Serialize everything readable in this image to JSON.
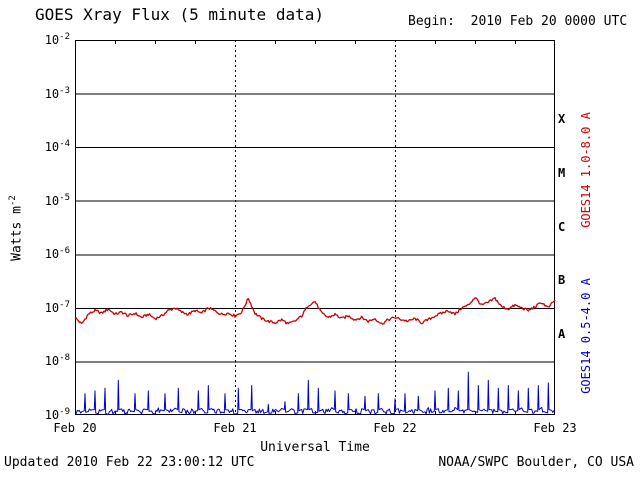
{
  "chart_data": {
    "type": "line",
    "title": "GOES Xray Flux (5 minute data)",
    "begin_label": "Begin:  2010 Feb 20 0000 UTC",
    "xlabel": "Universal Time",
    "ylabel_base": "Watts m",
    "ylabel_exp": "-2",
    "y_tick_base": "10",
    "y_ticks": [
      -2,
      -3,
      -4,
      -5,
      -6,
      -7,
      -8,
      -9
    ],
    "x_ticks": [
      {
        "label": "Feb 20",
        "hour": 0
      },
      {
        "label": "Feb 21",
        "hour": 24
      },
      {
        "label": "Feb 22",
        "hour": 48
      },
      {
        "label": "Feb 23",
        "hour": 72
      }
    ],
    "xlim_hours": [
      0,
      72
    ],
    "ylim_log10": [
      -9,
      -2
    ],
    "grid": true,
    "decade_gridlines": [
      -3,
      -4,
      -5,
      -6,
      -7,
      -8
    ],
    "day_gridlines_hours": [
      24,
      48
    ],
    "flare_classes": [
      {
        "label": "X",
        "log10_center": -3.5
      },
      {
        "label": "M",
        "log10_center": -4.5
      },
      {
        "label": "C",
        "log10_center": -5.5
      },
      {
        "label": "B",
        "log10_center": -6.5
      },
      {
        "label": "A",
        "log10_center": -7.5
      }
    ],
    "series": [
      {
        "name": "GOES14 1.0-8.0 A",
        "color": "#cc0000",
        "time_step_hours": 1,
        "log10_flux": [
          -7.18,
          -7.3,
          -7.12,
          -7.05,
          -7.1,
          -7.02,
          -7.12,
          -7.08,
          -7.15,
          -7.1,
          -7.18,
          -7.12,
          -7.2,
          -7.15,
          -7.05,
          -7.0,
          -7.08,
          -7.12,
          -7.05,
          -7.1,
          -7.0,
          -7.06,
          -7.12,
          -7.1,
          -7.15,
          -7.08,
          -6.82,
          -7.1,
          -7.2,
          -7.25,
          -7.28,
          -7.22,
          -7.3,
          -7.25,
          -7.15,
          -6.95,
          -6.88,
          -7.1,
          -7.18,
          -7.12,
          -7.2,
          -7.15,
          -7.22,
          -7.18,
          -7.25,
          -7.2,
          -7.3,
          -7.22,
          -7.18,
          -7.22,
          -7.25,
          -7.2,
          -7.28,
          -7.22,
          -7.15,
          -7.1,
          -7.05,
          -7.12,
          -7.0,
          -6.95,
          -6.8,
          -6.95,
          -6.9,
          -6.82,
          -6.98,
          -7.02,
          -6.95,
          -7.0,
          -7.05,
          -6.98,
          -6.9,
          -7.0,
          -6.85
        ]
      },
      {
        "name": "GOES14 0.5-4.0 A",
        "color": "#0000cc",
        "time_step_hours": 0.5,
        "log10_flux": [
          -9.0,
          -8.95,
          -8.92,
          -8.6,
          -8.95,
          -8.9,
          -8.55,
          -8.96,
          -8.9,
          -8.5,
          -8.97,
          -8.88,
          -8.93,
          -8.35,
          -8.9,
          -8.97,
          -8.88,
          -8.94,
          -8.6,
          -8.9,
          -8.96,
          -8.87,
          -8.55,
          -8.93,
          -8.97,
          -8.88,
          -8.92,
          -8.6,
          -8.9,
          -8.95,
          -8.87,
          -8.5,
          -8.94,
          -8.9,
          -8.97,
          -8.88,
          -8.92,
          -8.55,
          -8.9,
          -8.96,
          -8.45,
          -8.9,
          -8.94,
          -8.88,
          -8.96,
          -8.6,
          -8.9,
          -8.93,
          -8.97,
          -8.5,
          -8.9,
          -8.95,
          -8.88,
          -8.45,
          -8.92,
          -8.96,
          -8.9,
          -8.94,
          -8.8,
          -8.97,
          -8.9,
          -8.93,
          -8.88,
          -8.75,
          -8.95,
          -8.9,
          -8.96,
          -8.6,
          -8.92,
          -8.88,
          -8.35,
          -8.9,
          -8.95,
          -8.5,
          -8.93,
          -8.97,
          -8.9,
          -8.88,
          -8.55,
          -8.94,
          -8.9,
          -8.96,
          -8.6,
          -8.9,
          -8.93,
          -8.97,
          -8.88,
          -8.65,
          -8.92,
          -8.9,
          -8.95,
          -8.6,
          -8.88,
          -8.94,
          -8.9,
          -8.97,
          -8.7,
          -8.9,
          -8.93,
          -8.6,
          -8.96,
          -8.88,
          -8.92,
          -8.65,
          -8.9,
          -8.95,
          -8.88,
          -8.93,
          -8.55,
          -8.9,
          -8.96,
          -8.9,
          -8.5,
          -8.94,
          -8.88,
          -8.55,
          -8.92,
          -8.9,
          -8.2,
          -8.9,
          -8.95,
          -8.45,
          -8.9,
          -8.93,
          -8.35,
          -8.88,
          -8.94,
          -8.5,
          -8.9,
          -8.96,
          -8.45,
          -8.9,
          -8.92,
          -8.55,
          -8.88,
          -8.95,
          -8.5,
          -8.9,
          -8.93,
          -8.45,
          -8.88,
          -8.96,
          -8.4,
          -8.9,
          -8.93
        ]
      }
    ]
  },
  "footer": {
    "updated": "Updated 2010 Feb 22 23:00:12 UTC",
    "credit": "NOAA/SWPC Boulder, CO USA"
  }
}
